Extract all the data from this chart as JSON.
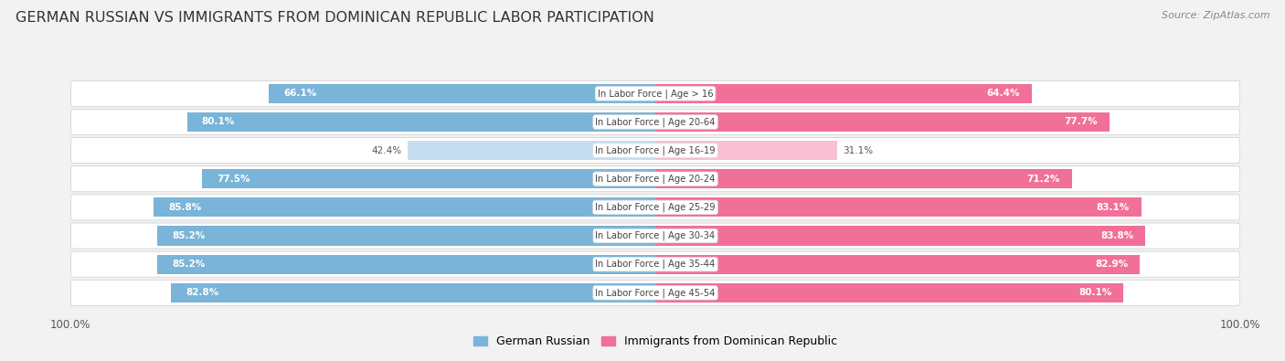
{
  "title": "GERMAN RUSSIAN VS IMMIGRANTS FROM DOMINICAN REPUBLIC LABOR PARTICIPATION",
  "source": "Source: ZipAtlas.com",
  "categories": [
    "In Labor Force | Age > 16",
    "In Labor Force | Age 20-64",
    "In Labor Force | Age 16-19",
    "In Labor Force | Age 20-24",
    "In Labor Force | Age 25-29",
    "In Labor Force | Age 30-34",
    "In Labor Force | Age 35-44",
    "In Labor Force | Age 45-54"
  ],
  "german_russian": [
    66.1,
    80.1,
    42.4,
    77.5,
    85.8,
    85.2,
    85.2,
    82.8
  ],
  "dominican": [
    64.4,
    77.7,
    31.1,
    71.2,
    83.1,
    83.8,
    82.9,
    80.1
  ],
  "blue_color": "#7ab4d8",
  "pink_color": "#f07098",
  "blue_light": "#c5ddef",
  "pink_light": "#f9c0d4",
  "bg_color": "#f2f2f2",
  "row_bg": "#ffffff",
  "title_fontsize": 11.5,
  "bar_height": 0.68,
  "max_val": 100.0,
  "legend_blue": "German Russian",
  "legend_pink": "Immigrants from Dominican Republic",
  "low_threshold": 50
}
